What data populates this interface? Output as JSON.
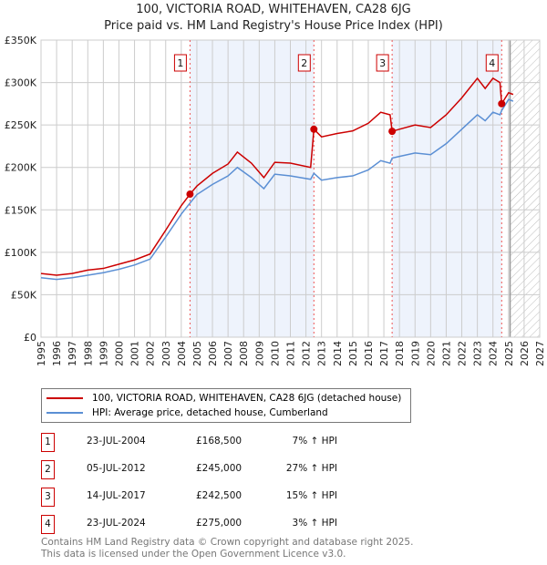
{
  "title": "100, VICTORIA ROAD, WHITEHAVEN, CA28 6JG",
  "subtitle": "Price paid vs. HM Land Registry's House Price Index (HPI)",
  "chart_data": {
    "type": "line",
    "xlim": [
      1995,
      2027
    ],
    "ylim": [
      0,
      350000
    ],
    "yticks": [
      {
        "v": 0,
        "label": "£0"
      },
      {
        "v": 50000,
        "label": "£50K"
      },
      {
        "v": 100000,
        "label": "£100K"
      },
      {
        "v": 150000,
        "label": "£150K"
      },
      {
        "v": 200000,
        "label": "£200K"
      },
      {
        "v": 250000,
        "label": "£250K"
      },
      {
        "v": 300000,
        "label": "£300K"
      },
      {
        "v": 350000,
        "label": "£350K"
      }
    ],
    "xticks": [
      "1995",
      "1996",
      "1997",
      "1998",
      "1999",
      "2000",
      "2001",
      "2002",
      "2003",
      "2004",
      "2005",
      "2006",
      "2007",
      "2008",
      "2009",
      "2010",
      "2011",
      "2012",
      "2013",
      "2014",
      "2015",
      "2016",
      "2017",
      "2018",
      "2019",
      "2020",
      "2021",
      "2022",
      "2023",
      "2024",
      "2025",
      "2026",
      "2027"
    ],
    "grid": true,
    "forecast_from": 2025.1,
    "x": [
      1995,
      1996,
      1997,
      1998,
      1999,
      2000,
      2001,
      2002,
      2003,
      2004,
      2004.56,
      2005,
      2006,
      2007,
      2007.6,
      2008.5,
      2009.3,
      2010,
      2011,
      2012.3,
      2012.51,
      2013,
      2014,
      2015,
      2016,
      2016.8,
      2017.4,
      2017.53,
      2018,
      2019,
      2020,
      2021,
      2022,
      2023,
      2023.5,
      2024,
      2024.45,
      2024.56,
      2025,
      2025.3
    ],
    "series": [
      {
        "name": "100, VICTORIA ROAD, WHITEHAVEN, CA28 6JG (detached house)",
        "color": "#cc0000",
        "values": [
          75000,
          73000,
          75000,
          79000,
          81000,
          86000,
          91000,
          98000,
          126000,
          155000,
          168500,
          178000,
          193000,
          204000,
          218000,
          205000,
          188000,
          206000,
          205000,
          200000,
          245000,
          236000,
          240000,
          243000,
          252000,
          265000,
          262000,
          242500,
          245000,
          250000,
          247000,
          262000,
          282000,
          305000,
          293000,
          305000,
          300000,
          275000,
          288000,
          286000
        ]
      },
      {
        "name": "HPI: Average price, detached house, Cumberland",
        "color": "#5b8fd4",
        "values": [
          70000,
          68000,
          70000,
          73000,
          76000,
          80000,
          85000,
          92000,
          118000,
          145000,
          158000,
          168000,
          180000,
          190000,
          200000,
          188000,
          175000,
          192000,
          190000,
          186000,
          193000,
          185000,
          188000,
          190000,
          197000,
          208000,
          205000,
          211000,
          213000,
          217000,
          215000,
          228000,
          245000,
          262000,
          255000,
          265000,
          262000,
          267000,
          280000,
          278000
        ]
      }
    ],
    "sales": [
      {
        "n": "1",
        "x": 2004.56,
        "date": "23-JUL-2004",
        "price": 168500,
        "price_label": "£168,500",
        "pct": "7% ↑ HPI"
      },
      {
        "n": "2",
        "x": 2012.51,
        "date": "05-JUL-2012",
        "price": 245000,
        "price_label": "£245,000",
        "pct": "27% ↑ HPI"
      },
      {
        "n": "3",
        "x": 2017.53,
        "date": "14-JUL-2017",
        "price": 242500,
        "price_label": "£242,500",
        "pct": "15% ↑ HPI"
      },
      {
        "n": "4",
        "x": 2024.56,
        "date": "23-JUL-2024",
        "price": 275000,
        "price_label": "£275,000",
        "pct": "3% ↑ HPI"
      }
    ]
  },
  "legend": {
    "property": "100, VICTORIA ROAD, WHITEHAVEN, CA28 6JG (detached house)",
    "hpi": "HPI: Average price, detached house, Cumberland"
  },
  "footer": {
    "line1": "Contains HM Land Registry data © Crown copyright and database right 2025.",
    "line2": "This data is licensed under the Open Government Licence v3.0."
  }
}
